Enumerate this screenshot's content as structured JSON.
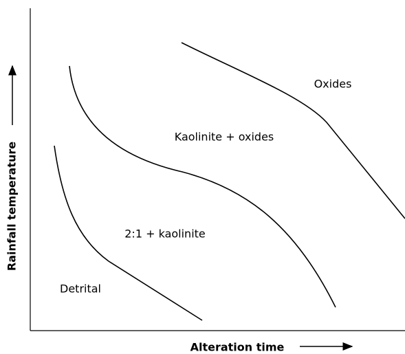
{
  "axes": {
    "x_label": "Alteration time",
    "y_label": "Rainfall temperature"
  },
  "regions": [
    {
      "label": "Oxides"
    },
    {
      "label": "Kaolinite + oxides"
    },
    {
      "label": "2:1 + kaolinite"
    },
    {
      "label": "Detrital"
    }
  ]
}
